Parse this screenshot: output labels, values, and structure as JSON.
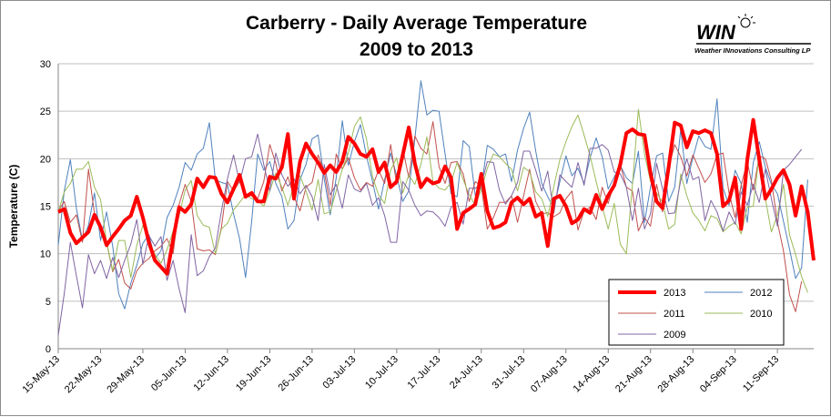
{
  "chart_data": {
    "type": "line",
    "title_line1": "Carberry - Daily Average Temperature",
    "title_line2": "2009 to 2013",
    "ylabel": "Temperature (C)",
    "xlabel": "",
    "ylim": [
      0,
      30
    ],
    "yticks": [
      0,
      5,
      10,
      15,
      20,
      25,
      30
    ],
    "grid": true,
    "legend_position": "bottom-right",
    "x_start": "15-May-13",
    "x_tick_labels": [
      "15-May-13",
      "22-May-13",
      "29-May-13",
      "05-Jun-13",
      "12-Jun-13",
      "19-Jun-13",
      "26-Jun-13",
      "03-Jul-13",
      "10-Jul-13",
      "17-Jul-13",
      "24-Jul-13",
      "31-Jul-13",
      "07-Aug-13",
      "14-Aug-13",
      "21-Aug-13",
      "28-Aug-13",
      "04-Sep-13",
      "11-Sep-13"
    ],
    "series": [
      {
        "name": "2013",
        "color": "#ff0000",
        "width": 4,
        "values": [
          14.4,
          14.7,
          12.2,
          11.1,
          11.7,
          12.3,
          14.1,
          12.8,
          10.9,
          11.8,
          12.6,
          13.5,
          14.0,
          16.0,
          13.8,
          11.2,
          9.3,
          8.6,
          7.9,
          11.5,
          14.9,
          14.4,
          15.2,
          17.9,
          17.0,
          18.1,
          18.0,
          16.3,
          15.4,
          16.8,
          18.3,
          16.0,
          16.4,
          15.5,
          15.5,
          18.1,
          17.9,
          19.1,
          22.6,
          15.8,
          19.7,
          21.6,
          20.5,
          19.6,
          18.5,
          19.3,
          18.6,
          19.7,
          22.3,
          21.6,
          20.5,
          20.2,
          21.0,
          18.6,
          19.6,
          17.0,
          17.6,
          20.4,
          23.3,
          19.5,
          17.0,
          17.9,
          17.4,
          17.6,
          19.2,
          18.0,
          12.6,
          14.3,
          14.7,
          15.2,
          18.4,
          14.5,
          12.7,
          12.9,
          13.3,
          15.4,
          15.9,
          15.2,
          15.8,
          13.9,
          14.3,
          10.8,
          15.8,
          16.1,
          15.0,
          13.2,
          13.6,
          14.7,
          14.3,
          16.2,
          14.7,
          16.1,
          17.2,
          19.4,
          22.7,
          23.1,
          22.6,
          22.5,
          18.5,
          15.5,
          14.8,
          19.1,
          23.8,
          23.5,
          21.2,
          22.9,
          22.7,
          23.0,
          22.7,
          20.5,
          15.0,
          15.6,
          18.0,
          12.6,
          19.9,
          24.1,
          19.9,
          15.8,
          16.8,
          18.0,
          18.8,
          17.3,
          14.0,
          17.1,
          14.4,
          9.3
        ]
      },
      {
        "name": "2012",
        "color": "#4f81bd",
        "width": 1,
        "values": [
          10.9,
          16.6,
          19.9,
          14.8,
          11.4,
          13.0,
          16.4,
          11.4,
          14.4,
          10.8,
          5.8,
          4.2,
          6.9,
          8.8,
          11.1,
          12.0,
          9.5,
          10.3,
          13.8,
          15.1,
          17.0,
          19.6,
          18.8,
          20.5,
          21.1,
          23.8,
          17.8,
          17.5,
          17.3,
          14.2,
          11.6,
          7.5,
          13.4,
          20.5,
          18.8,
          19.7,
          17.4,
          16.0,
          12.6,
          13.5,
          17.8,
          19.4,
          22.1,
          22.5,
          17.9,
          14.1,
          18.0,
          24.0,
          19.3,
          21.8,
          23.6,
          20.3,
          17.6,
          14.7,
          17.8,
          20.6,
          18.2,
          15.5,
          16.6,
          22.1,
          28.2,
          24.6,
          25.1,
          25.0,
          20.5,
          16.3,
          16.0,
          21.9,
          21.3,
          16.1,
          17.0,
          21.4,
          21.0,
          20.2,
          20.5,
          17.6,
          20.9,
          23.2,
          24.9,
          20.8,
          17.4,
          16.0,
          14.8,
          17.6,
          20.3,
          18.2,
          19.0,
          17.4,
          20.1,
          22.2,
          20.2,
          16.8,
          18.1,
          19.3,
          18.0,
          17.4,
          20.8,
          13.3,
          17.0,
          20.3,
          20.6,
          15.5,
          17.0,
          23.1,
          17.4,
          20.1,
          22.4,
          21.3,
          21.0,
          26.3,
          16.9,
          15.1,
          18.8,
          17.4,
          13.3,
          19.6,
          21.8,
          19.1,
          17.3,
          16.3,
          13.4,
          10.5,
          7.4,
          8.5,
          17.8
        ]
      },
      {
        "name": "2011",
        "color": "#c0504d",
        "width": 1,
        "values": [
          14.5,
          15.5,
          13.3,
          14.1,
          11.2,
          18.9,
          14.2,
          13.0,
          11.2,
          8.1,
          9.4,
          6.9,
          6.3,
          8.2,
          9.0,
          9.5,
          10.3,
          10.8,
          11.6,
          10.0,
          15.2,
          17.3,
          15.5,
          10.5,
          10.3,
          10.4,
          9.9,
          12.8,
          17.6,
          16.6,
          17.6,
          16.2,
          16.1,
          15.8,
          17.6,
          21.5,
          19.5,
          16.6,
          18.1,
          16.0,
          14.5,
          17.0,
          17.5,
          20.4,
          18.7,
          15.1,
          20.5,
          18.9,
          20.1,
          18.0,
          16.7,
          17.5,
          17.1,
          18.8,
          17.4,
          21.5,
          17.3,
          21.1,
          18.0,
          22.4,
          21.1,
          20.5,
          23.9,
          19.2,
          17.4,
          19.6,
          19.7,
          18.4,
          15.5,
          17.6,
          17.1,
          12.6,
          13.8,
          15.4,
          15.4,
          16.1,
          13.3,
          16.1,
          18.9,
          15.5,
          14.2,
          14.3,
          13.9,
          14.3,
          15.8,
          16.6,
          12.5,
          14.5,
          14.9,
          13.6,
          17.0,
          15.3,
          17.5,
          19.4,
          17.0,
          16.6,
          12.4,
          13.8,
          12.9,
          17.3,
          14.4,
          19.0,
          21.5,
          20.2,
          18.2,
          20.4,
          19.0,
          17.5,
          18.4,
          20.4,
          20.6,
          16.4,
          13.8,
          17.2,
          19.7,
          16.7,
          20.3,
          20.0,
          17.7,
          13.3,
          10.3,
          5.7,
          3.9,
          7.1
        ]
      },
      {
        "name": "2010",
        "color": "#9bbb59",
        "width": 1,
        "values": [
          14.4,
          16.5,
          17.4,
          18.9,
          18.9,
          19.7,
          17.0,
          15.7,
          11.2,
          8.2,
          11.4,
          11.4,
          7.5,
          10.9,
          13.0,
          11.2,
          9.9,
          9.0,
          10.4,
          12.4,
          14.0,
          16.7,
          17.7,
          14.0,
          13.0,
          12.8,
          10.0,
          12.6,
          13.2,
          14.6,
          15.4,
          16.2,
          15.8,
          15.6,
          15.0,
          16.6,
          18.5,
          17.0,
          15.1,
          17.2,
          18.2,
          16.6,
          14.6,
          17.8,
          14.2,
          14.4,
          16.6,
          18.9,
          20.6,
          23.4,
          24.4,
          22.1,
          18.1,
          16.2,
          15.3,
          18.8,
          20.1,
          16.4,
          18.3,
          17.3,
          19.4,
          22.3,
          17.6,
          16.9,
          16.7,
          17.5,
          19.6,
          17.8,
          16.2,
          15.1,
          16.8,
          19.0,
          20.5,
          20.2,
          19.5,
          18.9,
          16.6,
          19.1,
          18.6,
          16.5,
          15.8,
          13.9,
          17.1,
          19.9,
          21.8,
          23.4,
          24.6,
          22.5,
          20.3,
          17.6,
          15.0,
          12.6,
          15.3,
          11.0,
          10.0,
          17.2,
          25.2,
          20.5,
          17.6,
          16.4,
          15.4,
          12.6,
          13.1,
          18.4,
          16.1,
          14.3,
          13.5,
          12.4,
          14.0,
          13.7,
          12.3,
          12.9,
          13.3,
          12.1,
          14.9,
          15.0,
          20.5,
          15.8,
          12.3,
          14.1,
          17.3,
          12.0,
          9.9,
          7.6,
          5.9
        ]
      },
      {
        "name": "2009",
        "color": "#8064a2",
        "width": 1,
        "values": [
          1.4,
          5.8,
          11.2,
          7.7,
          4.3,
          9.9,
          7.9,
          9.3,
          7.4,
          9.6,
          7.5,
          9.3,
          11.0,
          13.6,
          8.9,
          11.9,
          10.8,
          11.8,
          7.2,
          9.3,
          6.3,
          3.8,
          12.0,
          7.7,
          8.2,
          9.7,
          10.6,
          14.5,
          17.9,
          20.4,
          17.5,
          20.0,
          20.2,
          22.6,
          19.4,
          16.6,
          20.6,
          18.3,
          17.1,
          17.9,
          16.3,
          17.2,
          16.0,
          13.5,
          19.4,
          16.2,
          17.3,
          14.8,
          18.3,
          16.8,
          16.5,
          17.4,
          15.1,
          15.9,
          14.0,
          11.2,
          11.2,
          17.6,
          16.7,
          15.1,
          14.0,
          14.5,
          14.4,
          13.8,
          12.9,
          14.9,
          15.4,
          13.1,
          16.9,
          16.9,
          17.3,
          19.7,
          19.6,
          16.7,
          15.2,
          16.1,
          17.5,
          20.8,
          20.8,
          18.8,
          16.6,
          18.7,
          14.3,
          18.3,
          17.6,
          17.0,
          19.6,
          17.2,
          21.1,
          21.1,
          21.5,
          20.9,
          18.6,
          18.4,
          17.0,
          13.5,
          16.9,
          12.6,
          14.2,
          19.5,
          16.8,
          14.2,
          14.3,
          17.7,
          20.0,
          17.8,
          18.1,
          13.5,
          15.6,
          14.4,
          12.4,
          14.4,
          13.1,
          16.5,
          15.1,
          17.3,
          15.4,
          18.9,
          15.8,
          12.9,
          18.8,
          19.4,
          20.2,
          21.0
        ]
      }
    ]
  },
  "logo": {
    "main_text": "WIN",
    "sub_text": "Weather INnovations Consulting LP"
  }
}
